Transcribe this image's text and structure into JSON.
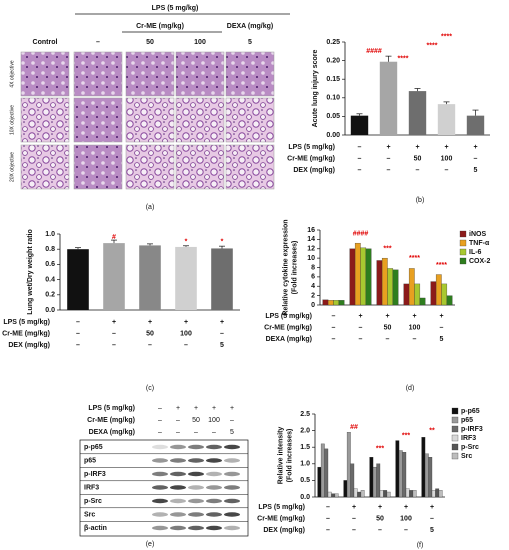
{
  "histology": {
    "header": "LPS (5 mg/kg)",
    "subheaders": [
      "Cr-ME (mg/kg)",
      "DEXA (mg/kg)"
    ],
    "columns": [
      "Control",
      "–",
      "50",
      "100",
      "5"
    ],
    "rows": [
      "4X objective",
      "10X objective",
      "20X objective"
    ],
    "label": "(a)"
  },
  "western_blot": {
    "conditions": [
      {
        "label": "LPS (5 mg/kg)",
        "cells": [
          "–",
          "+",
          "+",
          "+",
          "+"
        ]
      },
      {
        "label": "Cr-ME (mg/kg)",
        "cells": [
          "–",
          "–",
          "50",
          "100",
          "–"
        ]
      },
      {
        "label": "DEXA (mg/kg)",
        "cells": [
          "–",
          "–",
          "–",
          "–",
          "5"
        ]
      }
    ],
    "proteins": [
      "p-p65",
      "p65",
      "p-IRF3",
      "IRF3",
      "p-Src",
      "Src",
      "β-actin"
    ],
    "label": "(e)"
  },
  "chart_data": [
    {
      "type": "bar",
      "label": "(b)",
      "ylabel": [
        "Acute lung injury score"
      ],
      "values": [
        0.052,
        0.197,
        0.118,
        0.083,
        0.052
      ],
      "errors": [
        0.005,
        0.015,
        0.007,
        0.006,
        0.015
      ],
      "colors": [
        "#111111",
        "#a6a6a6",
        "#6e6e6e",
        "#d0d0d0",
        "#6e6e6e"
      ],
      "ylim": [
        0,
        0.25
      ],
      "yticks": [
        {
          "value": 0,
          "label": "0.00"
        },
        {
          "value": 0.05,
          "label": "0.05"
        },
        {
          "value": 0.1,
          "label": "0.10"
        },
        {
          "value": 0.15,
          "label": "0.15"
        },
        {
          "value": 0.2,
          "label": "0.20"
        },
        {
          "value": 0.25,
          "label": "0.25"
        }
      ],
      "conditions": [
        {
          "label": "LPS (5 mg/kg)",
          "cells": [
            "–",
            "+",
            "+",
            "+",
            "+"
          ]
        },
        {
          "label": "Cr-ME (mg/kg)",
          "cells": [
            "–",
            "–",
            "50",
            "100",
            "–"
          ]
        },
        {
          "label": "DEX (mg/kg)",
          "cells": [
            "–",
            "–",
            "–",
            "–",
            "5"
          ]
        }
      ],
      "annotations": [
        "####",
        "****",
        "****",
        "****"
      ],
      "annotation_color": "#e00000"
    },
    {
      "type": "bar",
      "label": "(c)",
      "ylabel": [
        "Lung wet/Dry weight ratio"
      ],
      "values": [
        0.8,
        0.88,
        0.85,
        0.83,
        0.81
      ],
      "errors": [
        0.02,
        0.04,
        0.02,
        0.015,
        0.03
      ],
      "colors": [
        "#111111",
        "#a6a6a6",
        "#888888",
        "#d0d0d0",
        "#6e6e6e"
      ],
      "ylim": [
        0,
        1.0
      ],
      "yticks": [
        {
          "value": 0,
          "label": "0.0"
        },
        0.2,
        0.4,
        0.6,
        0.8,
        {
          "value": 1,
          "label": "1.0"
        }
      ],
      "conditions": [
        {
          "label": "LPS (5 mg/kg)",
          "cells": [
            "–",
            "+",
            "+",
            "+",
            "+"
          ]
        },
        {
          "label": "Cr-ME (mg/kg)",
          "cells": [
            "–",
            "–",
            "50",
            "100",
            "–"
          ]
        },
        {
          "label": "DEX (mg/kg)",
          "cells": [
            "–",
            "–",
            "–",
            "–",
            "5"
          ]
        }
      ],
      "annotations": [
        "#",
        "*",
        "*"
      ],
      "annotation_color": "#e00000"
    },
    {
      "type": "grouped-bar",
      "label": "(d)",
      "ylabel": [
        "Relative cytokine expression",
        "(Fold increases)"
      ],
      "series": [
        {
          "name": "iNOS",
          "color": "#8b1a1a",
          "values": [
            1.1,
            12.0,
            9.5,
            4.5,
            5.0
          ]
        },
        {
          "name": "TNF-α",
          "color": "#e8a020",
          "values": [
            1.0,
            13.2,
            10.0,
            7.8,
            6.5
          ]
        },
        {
          "name": "IL-6",
          "color": "#a8c830",
          "values": [
            1.0,
            12.2,
            7.8,
            4.5,
            4.5
          ]
        },
        {
          "name": "COX-2",
          "color": "#2e7d1e",
          "values": [
            1.0,
            12.0,
            7.5,
            1.5,
            2.0
          ]
        }
      ],
      "ylim": [
        0,
        16
      ],
      "yticks": [
        0,
        2,
        4,
        6,
        8,
        10,
        12,
        14,
        16
      ],
      "conditions": [
        {
          "label": "LPS (5 mg/kg)",
          "cells": [
            "–",
            "+",
            "+",
            "+",
            "+"
          ]
        },
        {
          "label": "Cr-ME (mg/kg)",
          "cells": [
            "–",
            "–",
            "50",
            "100",
            "–"
          ]
        },
        {
          "label": "DEXA (mg/kg)",
          "cells": [
            "–",
            "–",
            "–",
            "–",
            "5"
          ]
        }
      ],
      "annotations": [
        "####",
        "***",
        "****",
        "****"
      ],
      "annotation_color": "#e00000"
    },
    {
      "type": "grouped-bar",
      "label": "(f)",
      "ylabel": [
        "Relative intensity",
        "(Fold increases)"
      ],
      "series": [
        {
          "name": "p-p65",
          "color": "#111111",
          "values": [
            0.9,
            0.5,
            1.2,
            1.7,
            1.8
          ]
        },
        {
          "name": "p65",
          "color": "#9a9a9a",
          "values": [
            1.6,
            1.95,
            0.9,
            1.4,
            1.3
          ]
        },
        {
          "name": "p-IRF3",
          "color": "#6a6a6a",
          "values": [
            1.45,
            1.0,
            1.0,
            1.35,
            1.2
          ]
        },
        {
          "name": "IRF3",
          "color": "#d8d8d8",
          "values": [
            0.15,
            0.25,
            0.2,
            0.25,
            0.2
          ]
        },
        {
          "name": "p-Src",
          "color": "#555555",
          "values": [
            0.1,
            0.15,
            0.2,
            0.2,
            0.25
          ]
        },
        {
          "name": "Src",
          "color": "#bdbdbd",
          "values": [
            0.1,
            0.2,
            0.15,
            0.2,
            0.2
          ]
        }
      ],
      "ylim": [
        0,
        2.5
      ],
      "yticks": [
        {
          "value": 0,
          "label": "0.0"
        },
        0.5,
        {
          "value": 1,
          "label": "1.0"
        },
        1.5,
        {
          "value": 2,
          "label": "2.0"
        },
        2.5
      ],
      "conditions": [
        {
          "label": "LPS (5 mg/kg)",
          "cells": [
            "–",
            "+",
            "+",
            "+",
            "+"
          ]
        },
        {
          "label": "Cr-ME (mg/kg)",
          "cells": [
            "–",
            "–",
            "50",
            "100",
            "–"
          ]
        },
        {
          "label": "DEX (mg/kg)",
          "cells": [
            "–",
            "–",
            "–",
            "–",
            "5"
          ]
        }
      ],
      "annotations": [
        "##",
        "***",
        "***",
        "**"
      ],
      "annotation_color": "#e00000"
    }
  ]
}
